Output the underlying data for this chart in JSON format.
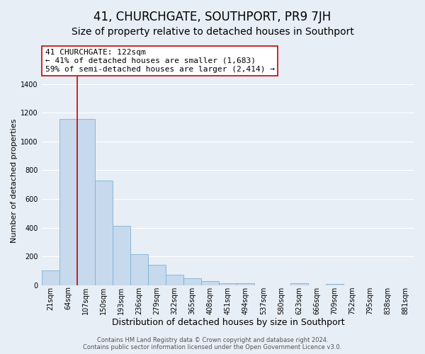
{
  "title": "41, CHURCHGATE, SOUTHPORT, PR9 7JH",
  "subtitle": "Size of property relative to detached houses in Southport",
  "xlabel": "Distribution of detached houses by size in Southport",
  "ylabel": "Number of detached properties",
  "bins": [
    "21sqm",
    "64sqm",
    "107sqm",
    "150sqm",
    "193sqm",
    "236sqm",
    "279sqm",
    "322sqm",
    "365sqm",
    "408sqm",
    "451sqm",
    "494sqm",
    "537sqm",
    "580sqm",
    "623sqm",
    "666sqm",
    "709sqm",
    "752sqm",
    "795sqm",
    "838sqm",
    "881sqm"
  ],
  "values": [
    105,
    1155,
    1155,
    730,
    415,
    215,
    145,
    73,
    50,
    30,
    17,
    13,
    0,
    0,
    13,
    0,
    10,
    0,
    0,
    0,
    0
  ],
  "bar_color": "#c6d9ed",
  "bar_edge_color": "#7fb3d3",
  "vline_color": "#cc0000",
  "annotation_text": "41 CHURCHGATE: 122sqm\n← 41% of detached houses are smaller (1,683)\n59% of semi-detached houses are larger (2,414) →",
  "annotation_box_color": "#ffffff",
  "annotation_box_edge": "#cc0000",
  "ylim": [
    0,
    1450
  ],
  "yticks": [
    0,
    200,
    400,
    600,
    800,
    1000,
    1200,
    1400
  ],
  "footer1": "Contains HM Land Registry data © Crown copyright and database right 2024.",
  "footer2": "Contains public sector information licensed under the Open Government Licence v3.0.",
  "background_color": "#e8eef5",
  "plot_background": "#e8eef5",
  "grid_color": "#ffffff",
  "title_fontsize": 12,
  "subtitle_fontsize": 10,
  "ylabel_fontsize": 8,
  "xlabel_fontsize": 9,
  "tick_fontsize": 7,
  "footer_fontsize": 6
}
